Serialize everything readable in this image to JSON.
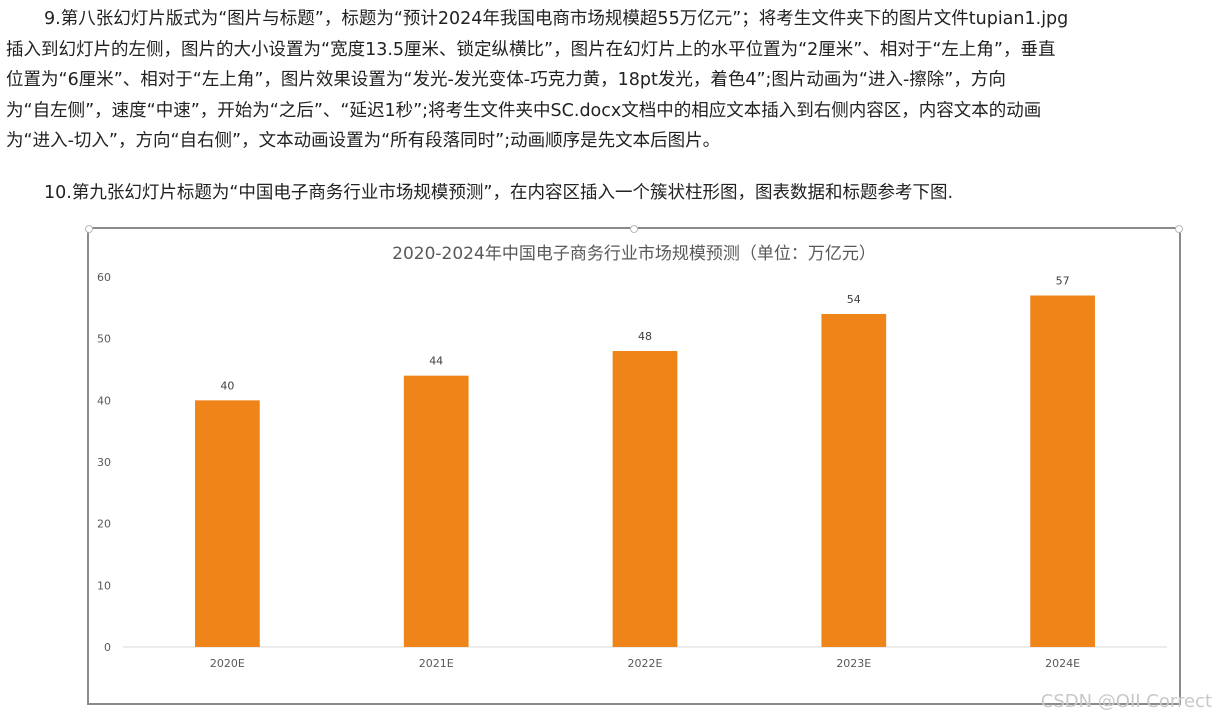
{
  "q9": {
    "lines": [
      "9.第八张幻灯片版式为“图片与标题”，标题为“预计2024年我国电商市场规模超55万亿元”；将考生文件夹下的图片文件tupian1.jpg",
      "插入到幻灯片的左侧，图片的大小设置为“宽度13.5厘米、锁定纵横比”，图片在幻灯片上的水平位置为“2厘米”、相对于“左上角”，垂直",
      "位置为“6厘米”、相对于“左上角”，图片效果设置为“发光-发光变体-巧克力黄，18pt发光，着色4”;图片动画为“进入-擦除”，方向",
      "为“自左侧”，速度“中速”，开始为“之后”、“延迟1秒”;将考生文件夹中SC.docx文档中的相应文本插入到右侧内容区，内容文本的动画",
      "为“进入-切入”，方向“自右侧”，文本动画设置为“所有段落同时”;动画顺序是先文本后图片。"
    ]
  },
  "q10": {
    "text": "10.第九张幻灯片标题为“中国电子商务行业市场规模预测”，在内容区插入一个簇状柱形图，图表数据和标题参考下图."
  },
  "chart_data": {
    "type": "bar",
    "title": "2020-2024年中国电子商务行业市场规模预测（单位：万亿元）",
    "categories": [
      "2020E",
      "2021E",
      "2022E",
      "2023E",
      "2024E"
    ],
    "series": [
      {
        "values": [
          40,
          44,
          48,
          54,
          57
        ],
        "color": "#ef8519"
      }
    ],
    "ylim": [
      0,
      60
    ],
    "yticks": [
      0,
      10,
      20,
      30,
      40,
      50,
      60
    ],
    "grid": false,
    "data_labels": true,
    "legend": "none"
  },
  "watermark": "CSDN @OII Correct"
}
